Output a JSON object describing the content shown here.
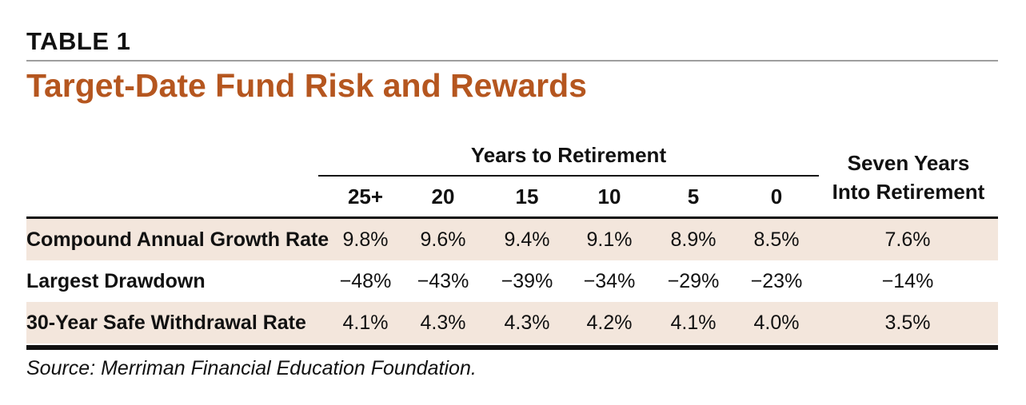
{
  "table_label": "TABLE 1",
  "title": "Target-Date Fund Risk and Rewards",
  "colors": {
    "title": "#b5561f",
    "shaded_row": "#f3e6dc",
    "rule": "#111111"
  },
  "header": {
    "group": "Years to Retirement",
    "columns": [
      "25+",
      "20",
      "15",
      "10",
      "5",
      "0"
    ],
    "seven_years_line1": "Seven Years",
    "seven_years_line2": "Into Retirement"
  },
  "rows": [
    {
      "label": "Compound Annual Growth Rate",
      "values": [
        "9.8%",
        "9.6%",
        "9.4%",
        "9.1%",
        "8.9%",
        "8.5%"
      ],
      "seven": "7.6%"
    },
    {
      "label": "Largest Drawdown",
      "values": [
        "−48%",
        "−43%",
        "−39%",
        "−34%",
        "−29%",
        "−23%"
      ],
      "seven": "−14%"
    },
    {
      "label": "30-Year Safe Withdrawal Rate",
      "values": [
        "4.1%",
        "4.3%",
        "4.3%",
        "4.2%",
        "4.1%",
        "4.0%"
      ],
      "seven": "3.5%"
    }
  ],
  "source": "Source: Merriman Financial Education Foundation."
}
